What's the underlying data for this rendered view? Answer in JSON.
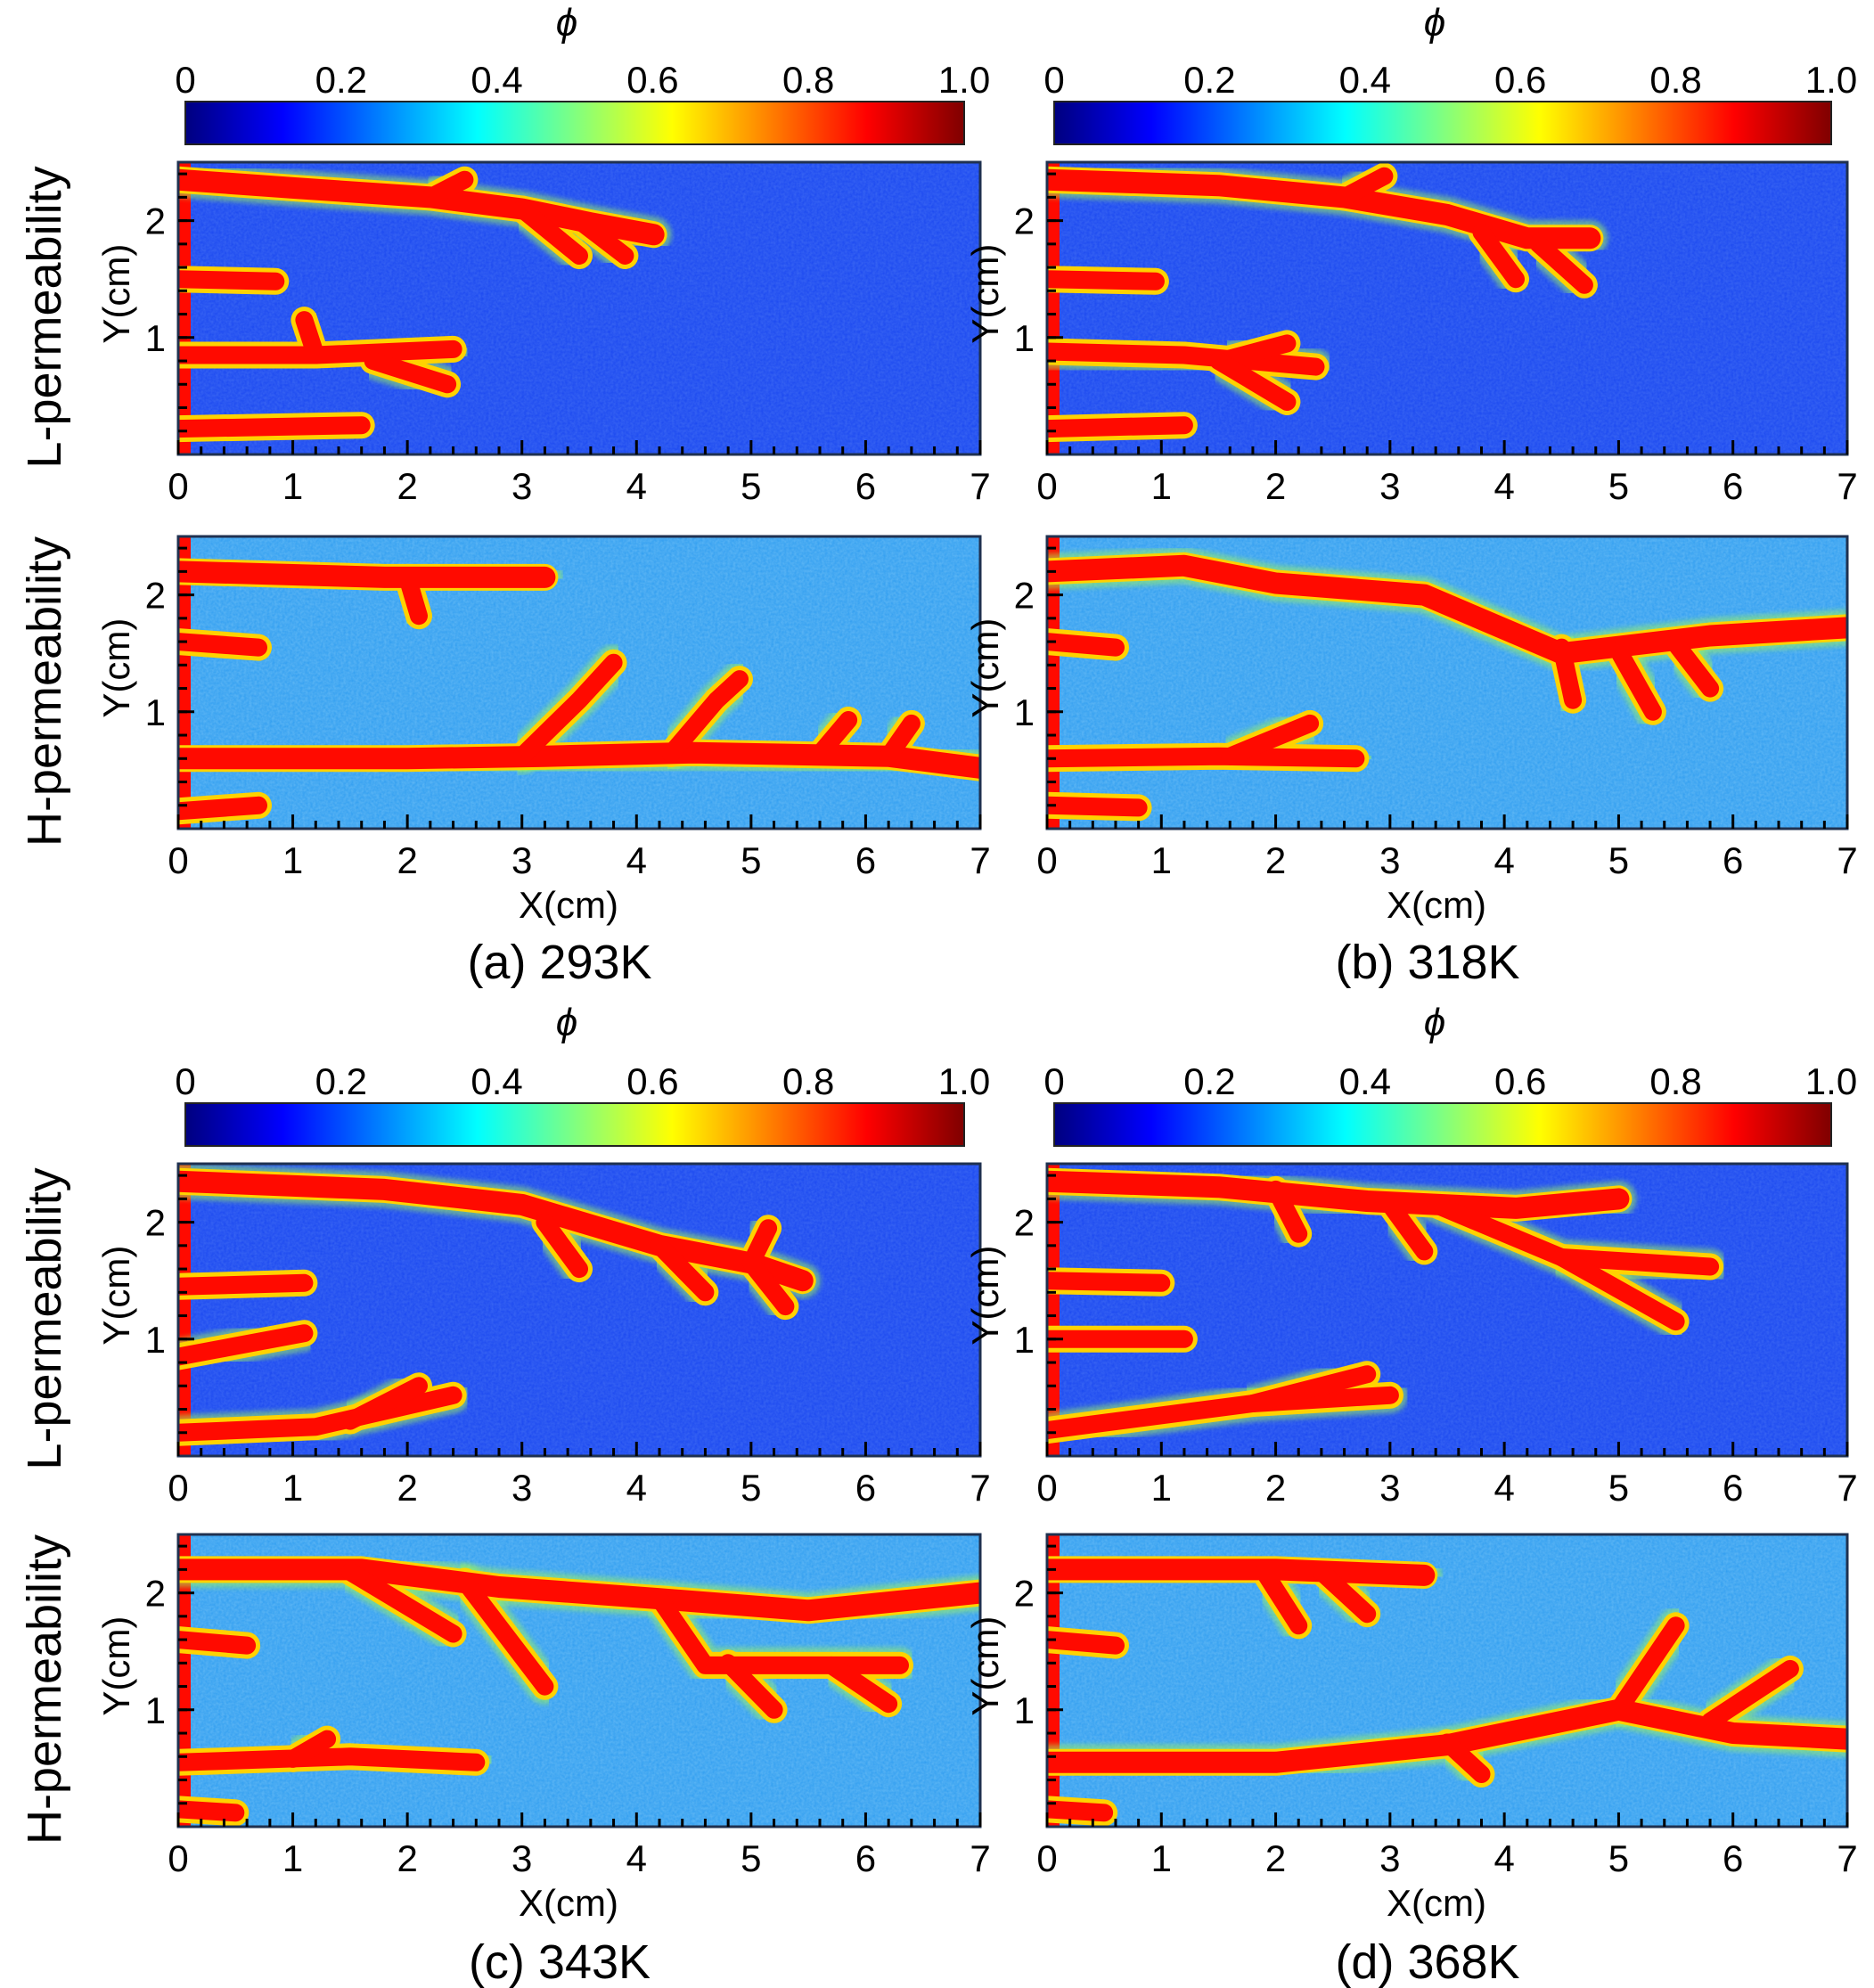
{
  "chart_data": {
    "type": "heatmap",
    "variable": "ϕ",
    "colorbar": {
      "label": "ϕ",
      "ticks": [
        "0",
        "0.2",
        "0.4",
        "0.6",
        "0.8",
        "1.0"
      ],
      "range": [
        0,
        1.0
      ],
      "colors": [
        "#00007f",
        "#0000ff",
        "#0080ff",
        "#00ffff",
        "#80ff80",
        "#ffff00",
        "#ff8000",
        "#ff0000",
        "#7f0000"
      ]
    },
    "x_axis": {
      "label": "X(cm)",
      "ticks": [
        "0",
        "1",
        "2",
        "3",
        "4",
        "5",
        "6",
        "7"
      ],
      "range": [
        0,
        7
      ]
    },
    "y_axis": {
      "label": "Y(cm)",
      "ticks": [
        "1",
        "2"
      ],
      "range": [
        0,
        2.5
      ]
    },
    "row_labels": [
      "L-permeability",
      "H-permeability"
    ],
    "background": {
      "L-permeability": "#1a47f0",
      "H-permeability": "#2f9df0"
    },
    "finger_color": "#ff0a00",
    "panels": [
      {
        "caption": "(a) 293K",
        "L_fingers": [
          [
            [
              0,
              2.35
            ],
            [
              1.0,
              2.28
            ],
            [
              2.2,
              2.2
            ],
            [
              3.0,
              2.1
            ],
            [
              3.6,
              1.98
            ],
            [
              4.15,
              1.88
            ]
          ],
          [
            [
              3.0,
              2.1
            ],
            [
              3.5,
              1.7
            ]
          ],
          [
            [
              3.5,
              2.0
            ],
            [
              3.9,
              1.7
            ]
          ],
          [
            [
              2.2,
              2.2
            ],
            [
              2.5,
              2.35
            ]
          ],
          [
            [
              0,
              1.5
            ],
            [
              0.85,
              1.48
            ]
          ],
          [
            [
              0,
              0.85
            ],
            [
              1.2,
              0.85
            ],
            [
              2.4,
              0.9
            ]
          ],
          [
            [
              1.2,
              0.85
            ],
            [
              1.1,
              1.15
            ]
          ],
          [
            [
              1.7,
              0.8
            ],
            [
              2.35,
              0.6
            ]
          ],
          [
            [
              0,
              0.22
            ],
            [
              1.6,
              0.25
            ]
          ]
        ],
        "H_fingers": [
          [
            [
              0,
              2.2
            ],
            [
              1.8,
              2.15
            ],
            [
              3.2,
              2.15
            ]
          ],
          [
            [
              2.0,
              2.15
            ],
            [
              2.1,
              1.82
            ]
          ],
          [
            [
              0,
              1.6
            ],
            [
              0.7,
              1.55
            ]
          ],
          [
            [
              0,
              0.6
            ],
            [
              2.0,
              0.6
            ],
            [
              3.2,
              0.62
            ],
            [
              4.5,
              0.65
            ],
            [
              6.2,
              0.62
            ],
            [
              7.0,
              0.52
            ]
          ],
          [
            [
              3.0,
              0.62
            ],
            [
              3.5,
              1.1
            ],
            [
              3.8,
              1.42
            ]
          ],
          [
            [
              4.3,
              0.64
            ],
            [
              4.7,
              1.1
            ],
            [
              4.9,
              1.28
            ]
          ],
          [
            [
              5.6,
              0.64
            ],
            [
              5.85,
              0.93
            ]
          ],
          [
            [
              6.2,
              0.62
            ],
            [
              6.4,
              0.9
            ]
          ],
          [
            [
              0,
              0.15
            ],
            [
              0.7,
              0.2
            ]
          ]
        ]
      },
      {
        "caption": "(b) 318K",
        "L_fingers": [
          [
            [
              0,
              2.35
            ],
            [
              1.5,
              2.3
            ],
            [
              2.6,
              2.2
            ],
            [
              3.5,
              2.05
            ],
            [
              4.2,
              1.85
            ],
            [
              4.75,
              1.85
            ]
          ],
          [
            [
              3.8,
              1.9
            ],
            [
              4.1,
              1.5
            ]
          ],
          [
            [
              4.3,
              1.8
            ],
            [
              4.7,
              1.45
            ]
          ],
          [
            [
              2.6,
              2.2
            ],
            [
              2.95,
              2.38
            ]
          ],
          [
            [
              0,
              1.5
            ],
            [
              0.95,
              1.48
            ]
          ],
          [
            [
              0,
              0.88
            ],
            [
              1.2,
              0.85
            ],
            [
              2.35,
              0.75
            ]
          ],
          [
            [
              1.6,
              0.82
            ],
            [
              2.1,
              0.95
            ]
          ],
          [
            [
              1.5,
              0.8
            ],
            [
              2.1,
              0.45
            ]
          ],
          [
            [
              0,
              0.22
            ],
            [
              1.2,
              0.25
            ]
          ]
        ],
        "H_fingers": [
          [
            [
              0,
              2.2
            ],
            [
              1.2,
              2.25
            ],
            [
              2.0,
              2.1
            ],
            [
              3.3,
              2.0
            ],
            [
              4.5,
              1.5
            ],
            [
              5.8,
              1.65
            ],
            [
              7.0,
              1.72
            ]
          ],
          [
            [
              4.5,
              1.55
            ],
            [
              4.6,
              1.1
            ]
          ],
          [
            [
              5.0,
              1.52
            ],
            [
              5.3,
              1.0
            ]
          ],
          [
            [
              5.5,
              1.58
            ],
            [
              5.8,
              1.2
            ]
          ],
          [
            [
              0,
              1.6
            ],
            [
              0.6,
              1.55
            ]
          ],
          [
            [
              0,
              0.6
            ],
            [
              1.5,
              0.62
            ],
            [
              2.7,
              0.6
            ]
          ],
          [
            [
              1.6,
              0.62
            ],
            [
              2.3,
              0.9
            ]
          ],
          [
            [
              0,
              0.2
            ],
            [
              0.8,
              0.18
            ]
          ]
        ]
      },
      {
        "caption": "(c) 343K",
        "L_fingers": [
          [
            [
              0,
              2.35
            ],
            [
              1.8,
              2.28
            ],
            [
              3.0,
              2.15
            ],
            [
              4.2,
              1.8
            ],
            [
              5.0,
              1.65
            ],
            [
              5.45,
              1.5
            ]
          ],
          [
            [
              3.2,
              2.0
            ],
            [
              3.5,
              1.6
            ]
          ],
          [
            [
              4.2,
              1.8
            ],
            [
              4.6,
              1.4
            ]
          ],
          [
            [
              5.0,
              1.65
            ],
            [
              5.3,
              1.28
            ]
          ],
          [
            [
              5.0,
              1.65
            ],
            [
              5.15,
              1.95
            ]
          ],
          [
            [
              0,
              1.45
            ],
            [
              1.1,
              1.48
            ]
          ],
          [
            [
              0,
              0.85
            ],
            [
              1.1,
              1.05
            ]
          ],
          [
            [
              0,
              0.2
            ],
            [
              1.2,
              0.25
            ],
            [
              2.4,
              0.52
            ]
          ],
          [
            [
              1.5,
              0.3
            ],
            [
              2.1,
              0.6
            ]
          ]
        ],
        "H_fingers": [
          [
            [
              0,
              2.2
            ],
            [
              1.6,
              2.2
            ],
            [
              2.8,
              2.05
            ],
            [
              4.2,
              1.95
            ],
            [
              5.5,
              1.85
            ],
            [
              7.0,
              2.0
            ]
          ],
          [
            [
              1.5,
              2.18
            ],
            [
              2.4,
              1.65
            ]
          ],
          [
            [
              2.5,
              2.1
            ],
            [
              3.2,
              1.2
            ]
          ],
          [
            [
              4.2,
              1.95
            ],
            [
              4.6,
              1.38
            ],
            [
              6.3,
              1.38
            ]
          ],
          [
            [
              4.8,
              1.4
            ],
            [
              5.2,
              1.0
            ]
          ],
          [
            [
              5.7,
              1.38
            ],
            [
              6.2,
              1.05
            ]
          ],
          [
            [
              0,
              1.6
            ],
            [
              0.6,
              1.55
            ]
          ],
          [
            [
              0,
              0.55
            ],
            [
              1.5,
              0.6
            ],
            [
              2.6,
              0.55
            ]
          ],
          [
            [
              1.0,
              0.58
            ],
            [
              1.3,
              0.75
            ]
          ],
          [
            [
              0,
              0.15
            ],
            [
              0.5,
              0.12
            ]
          ]
        ]
      },
      {
        "caption": "(d) 368K",
        "L_fingers": [
          [
            [
              0,
              2.35
            ],
            [
              1.5,
              2.3
            ],
            [
              2.8,
              2.18
            ],
            [
              4.1,
              2.12
            ],
            [
              5.0,
              2.2
            ]
          ],
          [
            [
              2.0,
              2.28
            ],
            [
              2.2,
              1.9
            ]
          ],
          [
            [
              3.4,
              2.15
            ],
            [
              4.5,
              1.7
            ],
            [
              5.8,
              1.62
            ]
          ],
          [
            [
              3.0,
              2.15
            ],
            [
              3.3,
              1.75
            ]
          ],
          [
            [
              4.5,
              1.7
            ],
            [
              5.5,
              1.15
            ]
          ],
          [
            [
              0,
              1.5
            ],
            [
              1.0,
              1.48
            ]
          ],
          [
            [
              0,
              1.0
            ],
            [
              1.2,
              1.0
            ]
          ],
          [
            [
              0,
              0.22
            ],
            [
              1.8,
              0.45
            ],
            [
              3.0,
              0.52
            ]
          ],
          [
            [
              1.8,
              0.45
            ],
            [
              2.8,
              0.7
            ]
          ]
        ],
        "H_fingers": [
          [
            [
              0,
              2.2
            ],
            [
              2.0,
              2.2
            ],
            [
              3.3,
              2.15
            ]
          ],
          [
            [
              1.9,
              2.18
            ],
            [
              2.2,
              1.72
            ]
          ],
          [
            [
              2.4,
              2.18
            ],
            [
              2.8,
              1.82
            ]
          ],
          [
            [
              0,
              1.6
            ],
            [
              0.6,
              1.55
            ]
          ],
          [
            [
              0,
              0.55
            ],
            [
              2.0,
              0.55
            ],
            [
              3.5,
              0.7
            ],
            [
              5.0,
              1.0
            ],
            [
              6.0,
              0.8
            ],
            [
              7.0,
              0.75
            ]
          ],
          [
            [
              5.0,
              1.0
            ],
            [
              5.5,
              1.72
            ]
          ],
          [
            [
              5.8,
              0.9
            ],
            [
              6.5,
              1.35
            ]
          ],
          [
            [
              3.5,
              0.72
            ],
            [
              3.8,
              0.45
            ]
          ],
          [
            [
              0,
              0.15
            ],
            [
              0.5,
              0.12
            ]
          ]
        ]
      }
    ]
  }
}
